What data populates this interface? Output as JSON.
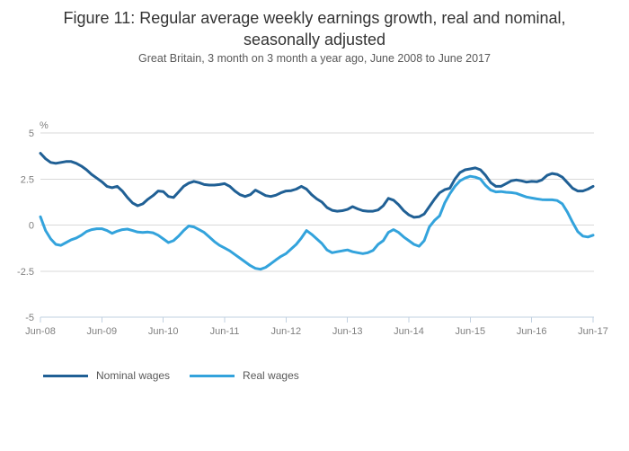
{
  "figure": {
    "title": "Figure 11: Regular average weekly earnings growth, real and nominal, seasonally adjusted",
    "subtitle": "Great Britain, 3 month on 3 month a year ago, June 2008 to June 2017"
  },
  "colors": {
    "nominal": "#206095",
    "real": "#33a3dc",
    "grid": "#d9d9d9",
    "axis": "#c2d1e0",
    "tick_text": "#7f7f7f",
    "title_text": "#333333",
    "subtitle_text": "#595959"
  },
  "legend": [
    {
      "label": "Nominal wages",
      "color": "#206095"
    },
    {
      "label": "Real wages",
      "color": "#33a3dc"
    }
  ],
  "chart_data": {
    "type": "line",
    "title": "Figure 11: Regular average weekly earnings growth, real and nominal, seasonally adjusted",
    "subtitle": "Great Britain, 3 month on 3 month a year ago, June 2008 to June 2017",
    "unit_label": "%",
    "xlabel": "",
    "ylabel": "%",
    "ylim": [
      -5,
      5
    ],
    "grid": "horizontal",
    "legend_position": "bottom-left",
    "x_tick_labels": [
      "Jun-08",
      "Jun-09",
      "Jun-10",
      "Jun-11",
      "Jun-12",
      "Jun-13",
      "Jun-14",
      "Jun-15",
      "Jun-16",
      "Jun-17"
    ],
    "x_tick_every_n_points": 12,
    "y_ticks": [
      5,
      2.5,
      0,
      -2.5,
      -5
    ],
    "y_tick_labels": [
      "5",
      "2.5",
      "0",
      "-2.5",
      "-5"
    ],
    "x_frequency": "monthly",
    "x_start": "Jun-2008",
    "x_end": "Jun-2017",
    "series": [
      {
        "name": "Nominal wages",
        "color": "#206095",
        "values": [
          3.9,
          3.6,
          3.4,
          3.35,
          3.4,
          3.45,
          3.45,
          3.35,
          3.2,
          3.0,
          2.75,
          2.55,
          2.35,
          2.1,
          2.03,
          2.1,
          1.85,
          1.5,
          1.2,
          1.05,
          1.15,
          1.4,
          1.6,
          1.85,
          1.82,
          1.55,
          1.5,
          1.8,
          2.1,
          2.28,
          2.37,
          2.3,
          2.2,
          2.17,
          2.17,
          2.2,
          2.25,
          2.1,
          1.85,
          1.65,
          1.55,
          1.65,
          1.9,
          1.75,
          1.6,
          1.55,
          1.62,
          1.75,
          1.85,
          1.87,
          1.95,
          2.1,
          1.95,
          1.65,
          1.42,
          1.25,
          0.95,
          0.8,
          0.75,
          0.78,
          0.85,
          1.0,
          0.88,
          0.78,
          0.75,
          0.75,
          0.82,
          1.05,
          1.45,
          1.35,
          1.1,
          0.78,
          0.55,
          0.42,
          0.45,
          0.6,
          1.0,
          1.4,
          1.75,
          1.92,
          2.0,
          2.5,
          2.85,
          3.0,
          3.05,
          3.1,
          3.0,
          2.7,
          2.3,
          2.1,
          2.1,
          2.25,
          2.4,
          2.45,
          2.4,
          2.33,
          2.37,
          2.35,
          2.45,
          2.7,
          2.8,
          2.75,
          2.6,
          2.3,
          2.0,
          1.85,
          1.85,
          1.95,
          2.1
        ]
      },
      {
        "name": "Real wages",
        "color": "#33a3dc",
        "values": [
          0.45,
          -0.3,
          -0.75,
          -1.05,
          -1.1,
          -0.95,
          -0.8,
          -0.7,
          -0.55,
          -0.35,
          -0.25,
          -0.2,
          -0.2,
          -0.3,
          -0.45,
          -0.33,
          -0.25,
          -0.22,
          -0.3,
          -0.38,
          -0.4,
          -0.38,
          -0.42,
          -0.55,
          -0.75,
          -0.95,
          -0.85,
          -0.6,
          -0.3,
          -0.05,
          -0.1,
          -0.25,
          -0.4,
          -0.65,
          -0.9,
          -1.1,
          -1.25,
          -1.4,
          -1.6,
          -1.8,
          -2.0,
          -2.2,
          -2.35,
          -2.4,
          -2.3,
          -2.1,
          -1.9,
          -1.7,
          -1.55,
          -1.3,
          -1.05,
          -0.7,
          -0.3,
          -0.5,
          -0.75,
          -1.0,
          -1.35,
          -1.5,
          -1.45,
          -1.4,
          -1.35,
          -1.45,
          -1.5,
          -1.55,
          -1.5,
          -1.38,
          -1.05,
          -0.85,
          -0.4,
          -0.25,
          -0.4,
          -0.65,
          -0.85,
          -1.05,
          -1.15,
          -0.85,
          -0.1,
          0.25,
          0.5,
          1.2,
          1.7,
          2.1,
          2.4,
          2.55,
          2.65,
          2.6,
          2.5,
          2.15,
          1.9,
          1.8,
          1.82,
          1.78,
          1.76,
          1.72,
          1.62,
          1.52,
          1.47,
          1.42,
          1.38,
          1.37,
          1.37,
          1.33,
          1.15,
          0.7,
          0.15,
          -0.35,
          -0.6,
          -0.65,
          -0.55
        ]
      }
    ]
  }
}
